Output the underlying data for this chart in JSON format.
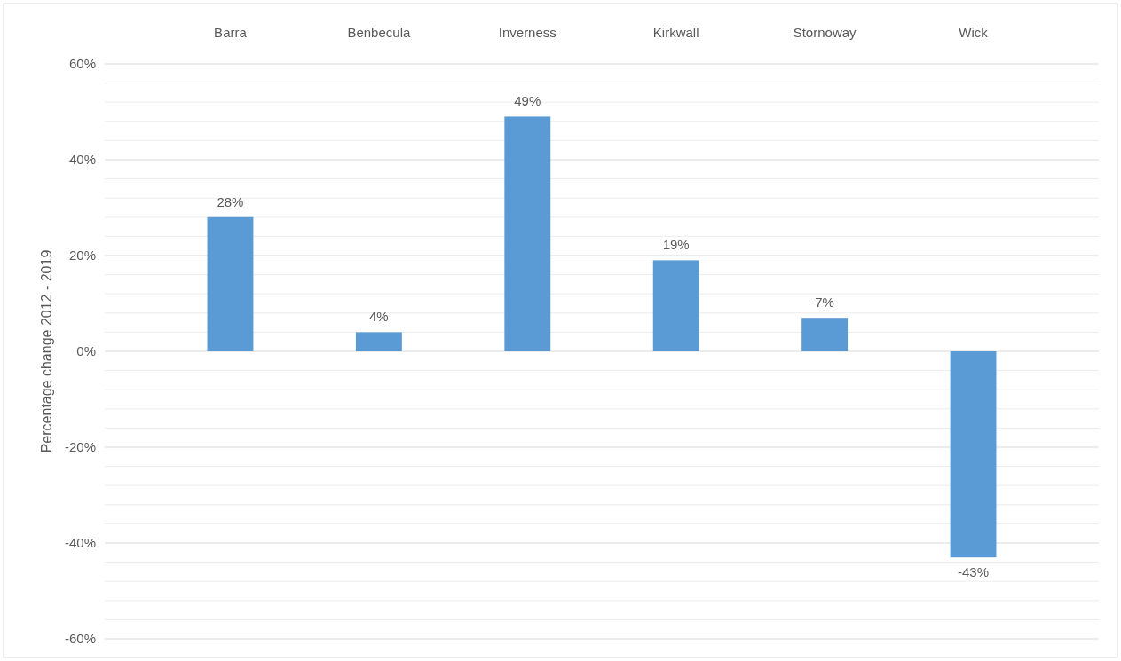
{
  "chart_data": {
    "type": "bar",
    "ylabel": "Percentage change 2012 - 2019",
    "categories": [
      "Barra",
      "Benbecula",
      "Inverness",
      "Kirkwall",
      "Stornoway",
      "Wick"
    ],
    "values": [
      28,
      4,
      49,
      19,
      7,
      -43
    ],
    "color": "#5b9bd5",
    "value_labels": [
      "28%",
      "4%",
      "49%",
      "19%",
      "7%",
      "-43%"
    ],
    "ylim": [
      -60,
      60
    ],
    "yticks": [
      {
        "value": -60,
        "label": "-60%"
      },
      {
        "value": -56,
        "label": null
      },
      {
        "value": -52,
        "label": null
      },
      {
        "value": -48,
        "label": null
      },
      {
        "value": -44,
        "label": null
      },
      {
        "value": -40,
        "label": "-40%"
      },
      {
        "value": -36,
        "label": null
      },
      {
        "value": -32,
        "label": null
      },
      {
        "value": -28,
        "label": null
      },
      {
        "value": -24,
        "label": null
      },
      {
        "value": -20,
        "label": "-20%"
      },
      {
        "value": -16,
        "label": null
      },
      {
        "value": -12,
        "label": null
      },
      {
        "value": -8,
        "label": null
      },
      {
        "value": -4,
        "label": null
      },
      {
        "value": 0,
        "label": "0%"
      },
      {
        "value": 4,
        "label": null
      },
      {
        "value": 8,
        "label": null
      },
      {
        "value": 12,
        "label": null
      },
      {
        "value": 16,
        "label": null
      },
      {
        "value": 20,
        "label": "20%"
      },
      {
        "value": 24,
        "label": null
      },
      {
        "value": 28,
        "label": null
      },
      {
        "value": 32,
        "label": null
      },
      {
        "value": 36,
        "label": null
      },
      {
        "value": 40,
        "label": "40%"
      },
      {
        "value": 44,
        "label": null
      },
      {
        "value": 48,
        "label": null
      },
      {
        "value": 52,
        "label": null
      },
      {
        "value": 56,
        "label": null
      },
      {
        "value": 60,
        "label": "60%"
      }
    ],
    "grid": "y"
  }
}
